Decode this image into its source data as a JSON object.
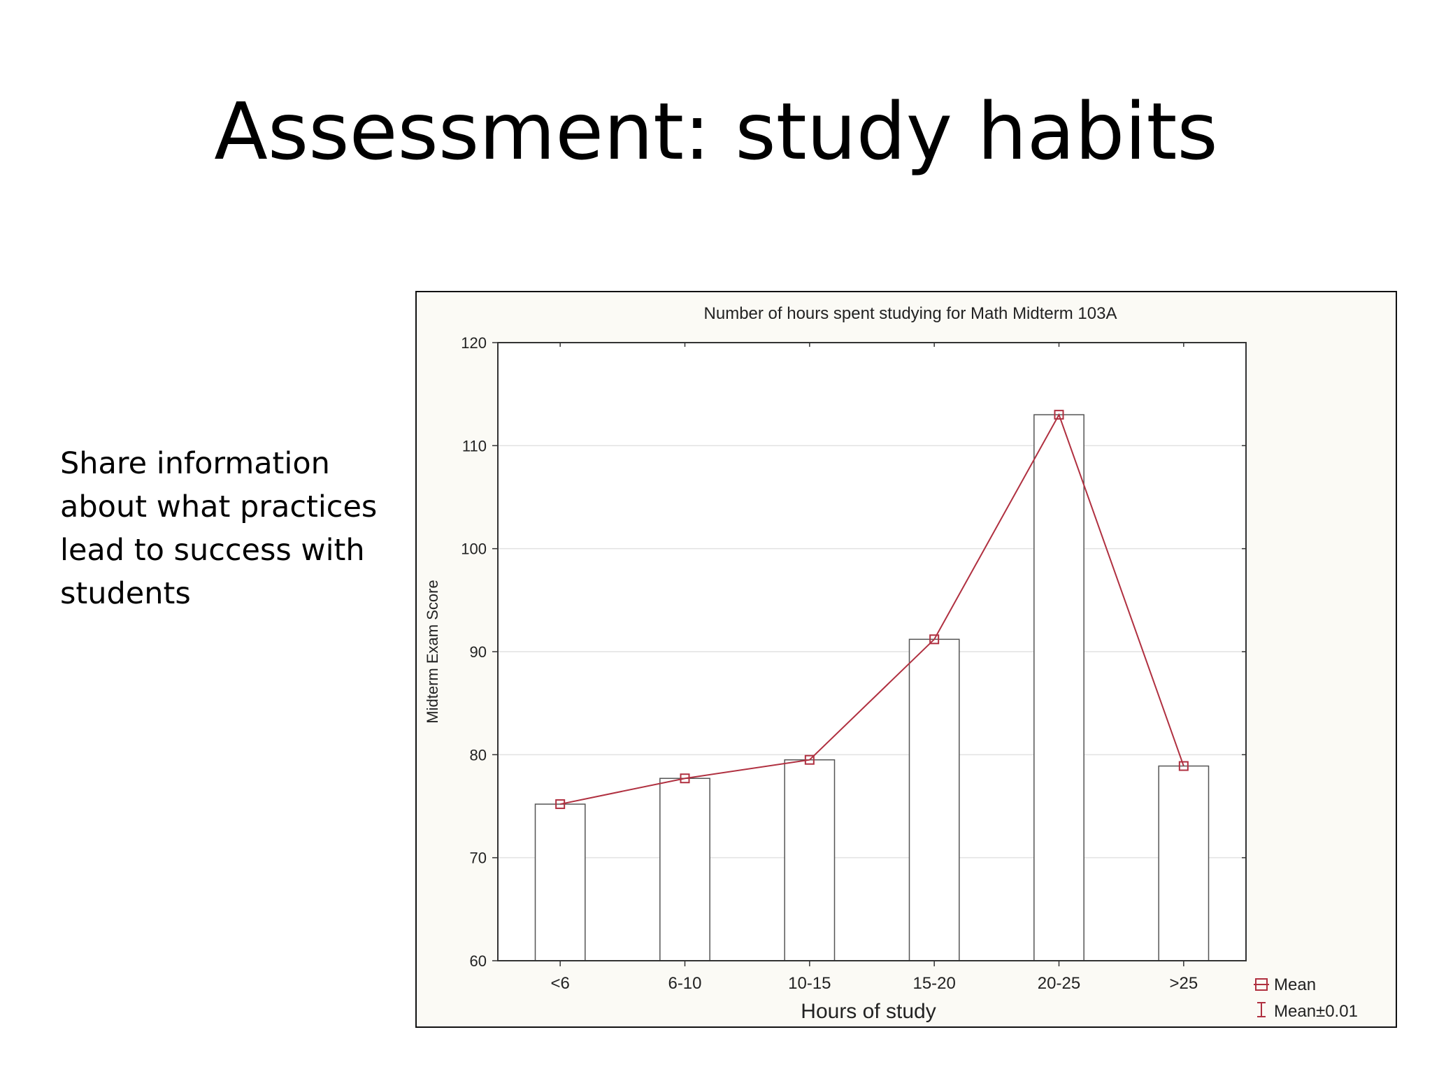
{
  "slide": {
    "title": "Assessment: study habits",
    "body": "Share information about what practices lead to success with students"
  },
  "chart_data": {
    "type": "bar",
    "title": "Number of hours spent studying for Math Midterm 103A",
    "xlabel": "Hours of study",
    "ylabel": "Midterm Exam Score",
    "categories": [
      "<6",
      "6-10",
      "10-15",
      "15-20",
      "20-25",
      ">25"
    ],
    "series": [
      {
        "name": "Mean",
        "values": [
          75.2,
          77.7,
          79.5,
          91.2,
          113.0,
          78.9
        ]
      }
    ],
    "ylim": [
      60,
      120
    ],
    "yticks": [
      60,
      70,
      80,
      90,
      100,
      110,
      120
    ],
    "grid": true,
    "legend": {
      "placement": "bottom-right",
      "entries": [
        "Mean",
        "Mean±0.01"
      ]
    },
    "colors": {
      "line": "#b03040",
      "bar_stroke": "#555555",
      "bar_fill": "#ffffff"
    }
  }
}
